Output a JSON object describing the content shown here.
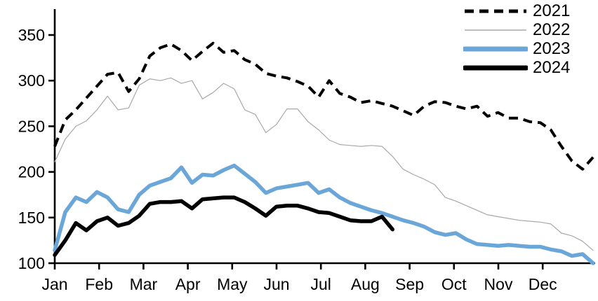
{
  "figure": {
    "background_color": "#ffffff",
    "text_color": "#000000",
    "axis_color": "#000000"
  },
  "axes": {
    "y_tick_labels": [
      "100",
      "150",
      "200",
      "250",
      "300",
      "350"
    ],
    "y_tick_values": [
      100,
      150,
      200,
      250,
      300,
      350
    ],
    "x_tick_labels": [
      "Jan",
      "Feb",
      "Mar",
      "Apr",
      "May",
      "Jun",
      "Jul",
      "Aug",
      "Sep",
      "Oct",
      "Nov",
      "Dec"
    ]
  },
  "legend": {
    "position": "top-right",
    "labels": [
      "2021",
      "2022",
      "2023",
      "2024"
    ]
  },
  "chart_data": {
    "type": "line",
    "title": "",
    "xlabel": "",
    "ylabel": "",
    "x_unit": "weekly observations, January through December",
    "ylim": [
      100,
      360
    ],
    "grid": false,
    "legend_position": "top-right",
    "series": [
      {
        "name": "2021",
        "color": "#000000",
        "style": "dashed",
        "line_width": 4,
        "values": [
          228,
          257,
          268,
          281,
          294,
          307,
          309,
          288,
          302,
          327,
          336,
          340,
          333,
          322,
          332,
          341,
          331,
          333,
          323,
          318,
          308,
          305,
          303,
          299,
          294,
          282,
          300,
          286,
          282,
          276,
          278,
          275,
          272,
          267,
          262,
          272,
          277,
          276,
          272,
          269,
          272,
          261,
          265,
          259,
          259,
          255,
          254,
          246,
          228,
          212,
          203,
          216
        ]
      },
      {
        "name": "2022",
        "color": "#a8a8a8",
        "style": "solid",
        "line_width": 1.2,
        "values": [
          211,
          236,
          250,
          256,
          268,
          283,
          268,
          270,
          295,
          302,
          300,
          303,
          297,
          300,
          280,
          287,
          297,
          291,
          268,
          263,
          243,
          252,
          269,
          269,
          255,
          246,
          235,
          230,
          229,
          228,
          229,
          228,
          217,
          203,
          197,
          192,
          186,
          172,
          168,
          163,
          158,
          153,
          151,
          149,
          147,
          146,
          145,
          143,
          133,
          130,
          124,
          114
        ]
      },
      {
        "name": "2023",
        "color": "#6aa7d8",
        "style": "solid",
        "line_width": 5.5,
        "values": [
          114,
          156,
          172,
          167,
          178,
          172,
          159,
          156,
          175,
          185,
          189,
          193,
          205,
          188,
          197,
          196,
          202,
          207,
          198,
          189,
          177,
          182,
          184,
          186,
          188,
          177,
          181,
          172,
          166,
          162,
          158,
          155,
          151,
          147,
          144,
          140,
          134,
          131,
          133,
          126,
          121,
          120,
          119,
          120,
          119,
          118,
          118,
          115,
          113,
          108,
          110,
          100
        ]
      },
      {
        "name": "2024",
        "color": "#000000",
        "style": "solid",
        "line_width": 5.5,
        "values": [
          109,
          125,
          144,
          136,
          146,
          150,
          141,
          144,
          152,
          165,
          167,
          167,
          168,
          160,
          170,
          171,
          172,
          172,
          167,
          160,
          152,
          162,
          163,
          163,
          160,
          156,
          155,
          151,
          147,
          146,
          146,
          151,
          137
        ]
      }
    ]
  }
}
